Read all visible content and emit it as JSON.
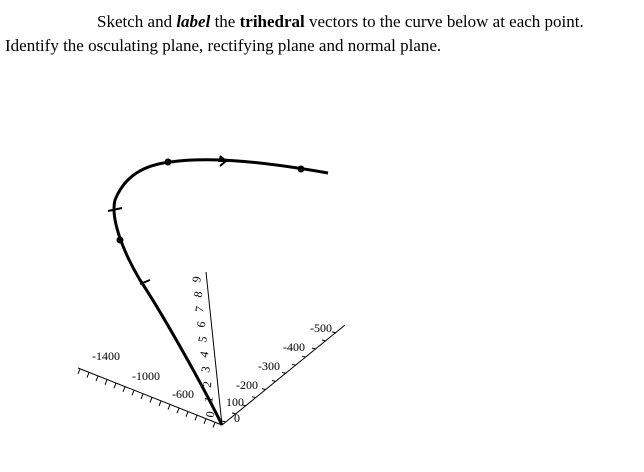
{
  "instructions": {
    "line1": {
      "before": "Sketch and ",
      "label": "label",
      "middle": " the ",
      "trihedral": "trihedral",
      "after": " vectors to the curve below at each point."
    },
    "line2": "Identify the osculating plane, rectifying plane and normal plane."
  },
  "figure": {
    "left_axis_labels": [
      "-1400",
      "-1000",
      "-600"
    ],
    "right_axis_labels": [
      "-500",
      "-400",
      "-300",
      "-200",
      "100",
      "0"
    ],
    "vertical_axis_labels": [
      "9",
      "8",
      "7",
      "6",
      "5",
      "4",
      "3",
      "2",
      "1",
      "0"
    ]
  }
}
